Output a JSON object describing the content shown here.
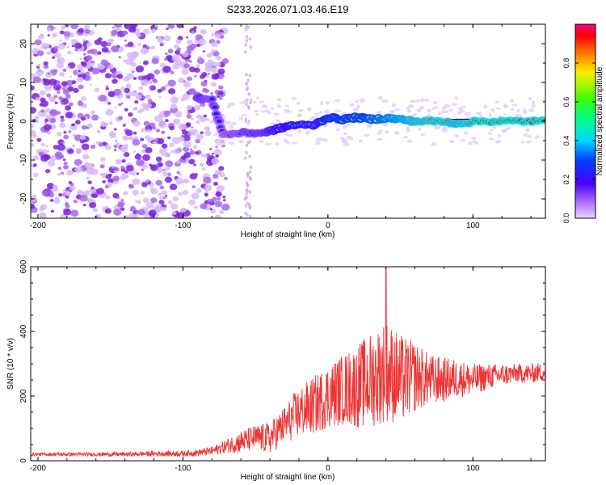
{
  "title": "S233.2026.071.03.46.E19",
  "colors": {
    "trace": "#ee3333",
    "scatter_purple": "#8a2be2",
    "ridge": "#000000"
  },
  "chart_data": [
    {
      "type": "heatmap",
      "xlabel": "Height of straight line (km)",
      "ylabel": "Frequency (Hz)",
      "xlim": [
        -205,
        150
      ],
      "ylim": [
        -25,
        25
      ],
      "x_ticks": [
        -200,
        -100,
        0,
        100
      ],
      "y_ticks": [
        -20,
        -10,
        0,
        10,
        20
      ],
      "x_tick_labels": [
        "-200",
        "-100",
        "0",
        "100"
      ],
      "y_tick_labels": [
        "-20",
        "-10",
        "0",
        "10",
        "20"
      ],
      "colorbar": {
        "label": "Normalized spectral amplitude",
        "range": [
          0,
          1
        ],
        "ticks": [
          0.0,
          0.2,
          0.4,
          0.6,
          0.8
        ],
        "tick_labels": [
          "0.0",
          "0.2",
          "0.4",
          "0.6",
          "0.8"
        ]
      },
      "ridge": [
        {
          "x": -90,
          "y": 6,
          "v": 0.3
        },
        {
          "x": -80,
          "y": 5.5,
          "v": 0.25
        },
        {
          "x": -72,
          "y": -3.5,
          "v": 0.2
        },
        {
          "x": -60,
          "y": -3,
          "v": 0.25
        },
        {
          "x": -45,
          "y": -3,
          "v": 0.3
        },
        {
          "x": -35,
          "y": -2,
          "v": 0.4
        },
        {
          "x": -25,
          "y": -1,
          "v": 0.45
        },
        {
          "x": -10,
          "y": -1,
          "v": 0.45
        },
        {
          "x": 0,
          "y": 1,
          "v": 0.55
        },
        {
          "x": 10,
          "y": 0.5,
          "v": 0.6
        },
        {
          "x": 20,
          "y": 1,
          "v": 0.6
        },
        {
          "x": 30,
          "y": 0.5,
          "v": 0.7
        },
        {
          "x": 40,
          "y": 0.8,
          "v": 0.75
        },
        {
          "x": 50,
          "y": 0.5,
          "v": 0.8
        },
        {
          "x": 60,
          "y": 0,
          "v": 0.85
        },
        {
          "x": 75,
          "y": 0,
          "v": 0.9
        },
        {
          "x": 90,
          "y": -0.5,
          "v": 0.85
        },
        {
          "x": 105,
          "y": 0,
          "v": 0.95
        },
        {
          "x": 120,
          "y": 0,
          "v": 0.95
        },
        {
          "x": 135,
          "y": 0,
          "v": 0.95
        },
        {
          "x": 150,
          "y": 0,
          "v": 0.95
        }
      ]
    },
    {
      "type": "line",
      "xlabel": "Height of straight line (km)",
      "ylabel": "SNR (10 * v/v)",
      "xlim": [
        -205,
        150
      ],
      "ylim": [
        0,
        600
      ],
      "x_ticks": [
        -200,
        -100,
        0,
        100
      ],
      "y_ticks": [
        0,
        200,
        400,
        600
      ],
      "x_tick_labels": [
        "-200",
        "-100",
        "0",
        "100"
      ],
      "y_tick_labels": [
        "0",
        "200",
        "400",
        "600"
      ],
      "series": [
        {
          "name": "SNR",
          "x": [
            -205,
            -180,
            -160,
            -140,
            -120,
            -100,
            -90,
            -80,
            -70,
            -60,
            -50,
            -40,
            -30,
            -20,
            -10,
            0,
            10,
            20,
            30,
            40,
            50,
            60,
            70,
            80,
            90,
            100,
            110,
            120,
            130,
            140,
            150
          ],
          "y": [
            20,
            20,
            20,
            20,
            22,
            22,
            25,
            30,
            45,
            60,
            70,
            70,
            110,
            150,
            170,
            200,
            220,
            230,
            250,
            280,
            250,
            260,
            250,
            250,
            255,
            250,
            260,
            265,
            270,
            270,
            275
          ],
          "amplitude": [
            5,
            6,
            6,
            7,
            8,
            9,
            10,
            14,
            22,
            35,
            40,
            50,
            60,
            80,
            90,
            100,
            110,
            130,
            150,
            160,
            140,
            110,
            80,
            70,
            60,
            50,
            40,
            35,
            30,
            30,
            30
          ],
          "peak": {
            "x": 40,
            "y": 600
          }
        }
      ]
    }
  ]
}
